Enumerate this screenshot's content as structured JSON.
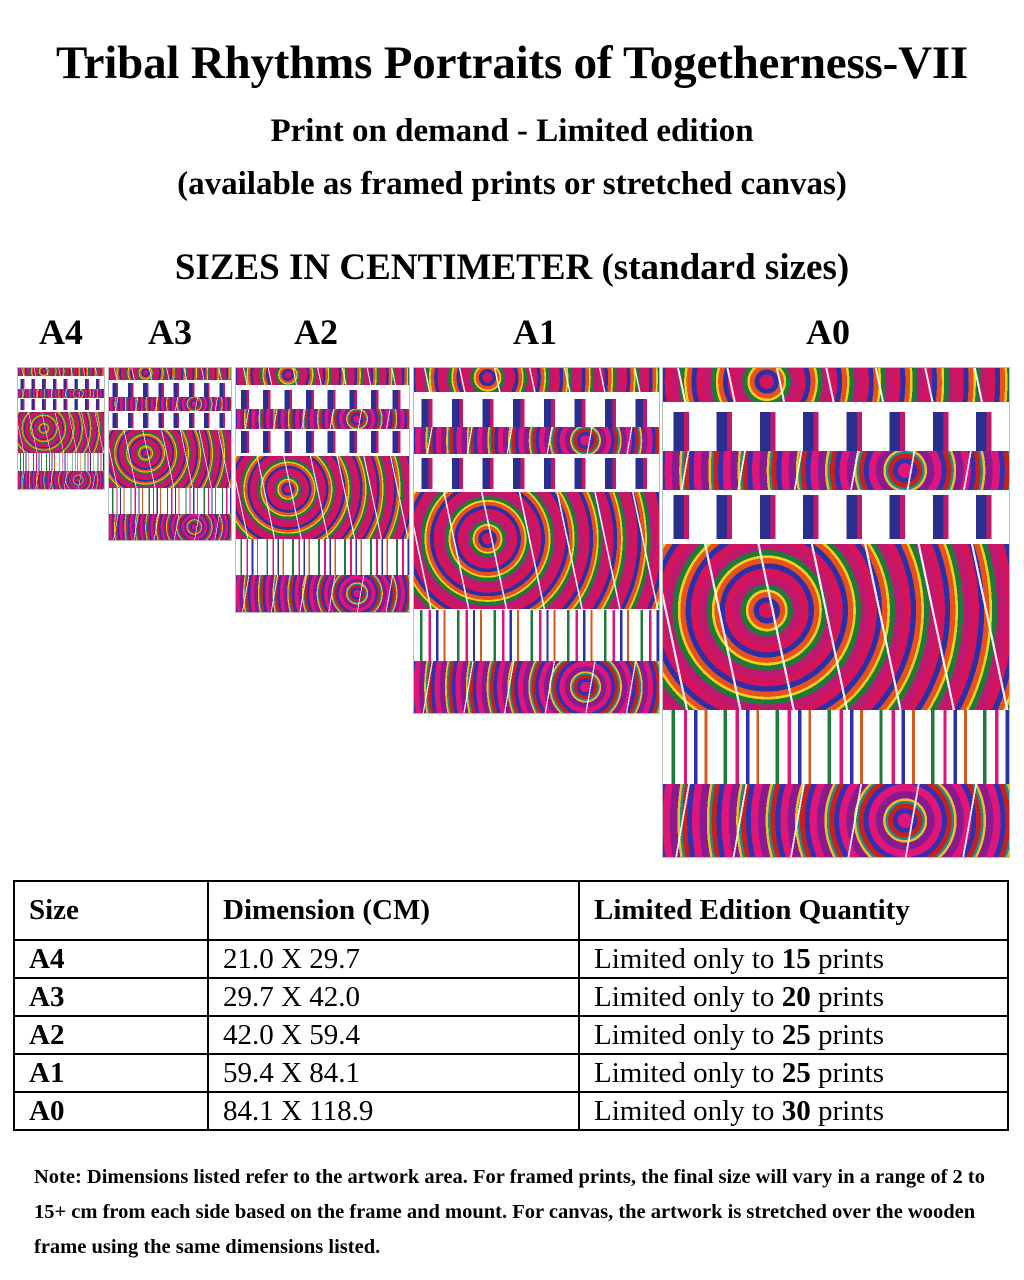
{
  "header": {
    "title": "Tribal Rhythms Portraits of Togetherness-VII",
    "subtitle_line1": "Print on demand  - Limited edition",
    "subtitle_line2": "(available as framed prints or stretched canvas)",
    "sizes_heading": "SIZES IN CENTIMETER (standard sizes)"
  },
  "previews": [
    {
      "label": "A4"
    },
    {
      "label": "A3"
    },
    {
      "label": "A2"
    },
    {
      "label": "A1"
    },
    {
      "label": "A0"
    }
  ],
  "colors": {
    "magenta": "#d4145a",
    "blue": "#2b2fa8",
    "orange": "#e8501c",
    "yellow": "#f2d21a",
    "green": "#1d7a3a"
  },
  "table": {
    "headers": [
      "Size",
      "Dimension (CM)",
      "Limited Edition Quantity"
    ],
    "rows": [
      {
        "size": "A4",
        "dimension": "21.0 X 29.7",
        "prefix": "Limited only to ",
        "qty": "15",
        "suffix": " prints"
      },
      {
        "size": "A3",
        "dimension": "29.7 X 42.0",
        "prefix": "Limited only to ",
        "qty": "20",
        "suffix": " prints"
      },
      {
        "size": "A2",
        "dimension": "42.0 X 59.4",
        "prefix": "Limited only to ",
        "qty": "25",
        "suffix": " prints"
      },
      {
        "size": "A1",
        "dimension": "59.4 X 84.1",
        "prefix": "Limited only to ",
        "qty": "25",
        "suffix": " prints"
      },
      {
        "size": "A0",
        "dimension": "84.1 X 118.9",
        "prefix": "Limited only to ",
        "qty": "30",
        "suffix": " prints"
      }
    ]
  },
  "note": "Note: Dimensions listed refer to the artwork area. For framed prints, the final size will vary in a range of 2 to 15+ cm from each side based on the frame and mount. For canvas, the artwork is stretched over the wooden frame using the same dimensions listed."
}
